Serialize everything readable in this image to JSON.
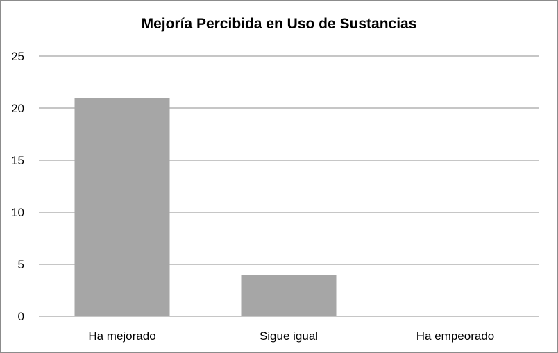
{
  "chart_data": {
    "type": "bar",
    "title": "Mejoría Percibida en Uso de Sustancias",
    "xlabel": "",
    "ylabel": "",
    "categories": [
      "Ha mejorado",
      "Sigue igual",
      "Ha empeorado"
    ],
    "values": [
      21,
      4,
      0
    ],
    "ylim": [
      0,
      25
    ],
    "yticks": [
      0,
      5,
      10,
      15,
      20,
      25
    ],
    "grid": true,
    "legend": "none",
    "colors": {
      "bar": "#a6a6a6",
      "grid": "#8c8c8c"
    }
  }
}
